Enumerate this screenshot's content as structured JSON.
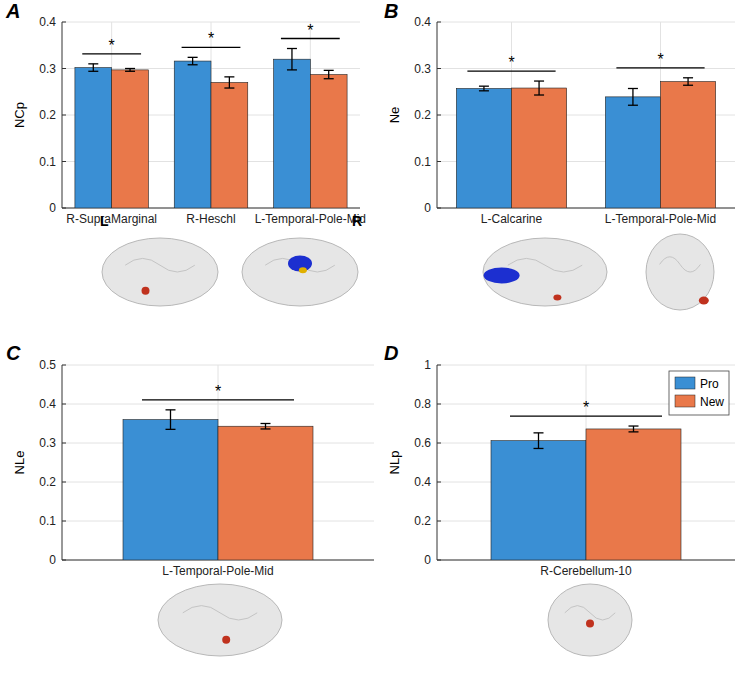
{
  "chart_data": [
    {
      "type": "bar",
      "panel": "A",
      "y_label": "NCp",
      "categories": [
        "R-SupraMarginal",
        "R-Heschl",
        "L-Temporal-Pole-Mid"
      ],
      "series": [
        {
          "color": "#3a8fd4",
          "values": [
            0.302,
            0.316,
            0.32
          ],
          "errors": [
            0.008,
            0.008,
            0.023
          ]
        },
        {
          "color": "#e9784a",
          "values": [
            0.297,
            0.27,
            0.287
          ],
          "errors": [
            0.003,
            0.012,
            0.009
          ]
        }
      ],
      "significance": [
        "*",
        "*",
        "*"
      ],
      "annotations": [
        "L",
        "R"
      ],
      "ylim": [
        0,
        0.4
      ],
      "yticks": [
        0,
        0.1,
        0.2,
        0.3,
        0.4
      ],
      "grid": true
    },
    {
      "type": "bar",
      "panel": "B",
      "y_label": "Ne",
      "categories": [
        "L-Calcarine",
        "L-Temporal-Pole-Mid"
      ],
      "series": [
        {
          "color": "#3a8fd4",
          "values": [
            0.257,
            0.239
          ],
          "errors": [
            0.005,
            0.018
          ]
        },
        {
          "color": "#e9784a",
          "values": [
            0.258,
            0.272
          ],
          "errors": [
            0.015,
            0.008
          ]
        }
      ],
      "significance": [
        "*",
        "*"
      ],
      "ylim": [
        0,
        0.4
      ],
      "yticks": [
        0,
        0.1,
        0.2,
        0.3,
        0.4
      ],
      "grid": true
    },
    {
      "type": "bar",
      "panel": "C",
      "y_label": "NLe",
      "categories": [
        "L-Temporal-Pole-Mid"
      ],
      "series": [
        {
          "color": "#3a8fd4",
          "values": [
            0.36
          ],
          "errors": [
            0.025
          ]
        },
        {
          "color": "#e9784a",
          "values": [
            0.343
          ],
          "errors": [
            0.007
          ]
        }
      ],
      "significance": [
        "*"
      ],
      "ylim": [
        0,
        0.5
      ],
      "yticks": [
        0,
        0.1,
        0.2,
        0.3,
        0.4,
        0.5
      ],
      "grid": true
    },
    {
      "type": "bar",
      "panel": "D",
      "y_label": "NLp",
      "categories": [
        "R-Cerebellum-10"
      ],
      "series": [
        {
          "name": "Pro",
          "color": "#3a8fd4",
          "values": [
            0.612
          ],
          "errors": [
            0.04
          ]
        },
        {
          "name": "New",
          "color": "#e9784a",
          "values": [
            0.672
          ],
          "errors": [
            0.015
          ]
        }
      ],
      "significance": [
        "*"
      ],
      "legend": "upper right",
      "ylim": [
        0,
        1
      ],
      "yticks": [
        0,
        0.2,
        0.4,
        0.6,
        0.8,
        1
      ],
      "grid": true
    }
  ]
}
